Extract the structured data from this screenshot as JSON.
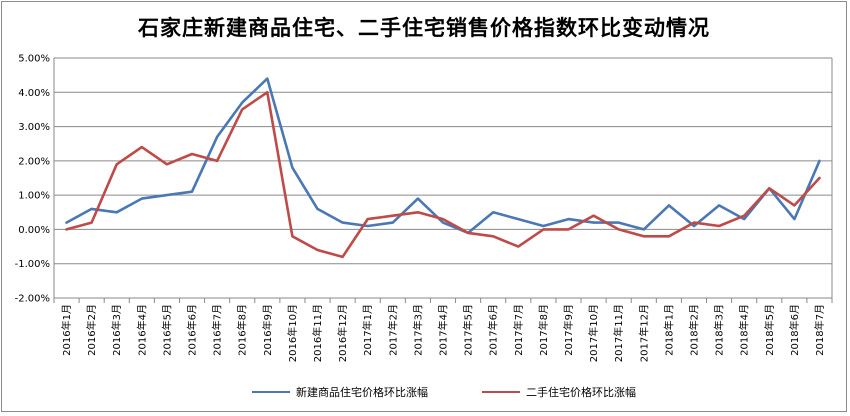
{
  "title": "石家庄新建商品住宅、二手住宅销售价格指数环比变动情况",
  "chart_data": {
    "type": "line",
    "title": "石家庄新建商品住宅、二手住宅销售价格指数环比变动情况",
    "xlabel": "",
    "ylabel": "",
    "ylim": [
      -2,
      5
    ],
    "yticks": [
      "5.00%",
      "4.00%",
      "3.00%",
      "2.00%",
      "1.00%",
      "0.00%",
      "-1.00%",
      "-2.00%"
    ],
    "ytick_values": [
      5,
      4,
      3,
      2,
      1,
      0,
      -1,
      -2
    ],
    "grid": true,
    "legend_position": "bottom",
    "categories": [
      "2016年1月",
      "2016年2月",
      "2016年3月",
      "2016年4月",
      "2016年5月",
      "2016年6月",
      "2016年7月",
      "2016年8月",
      "2016年9月",
      "2016年10月",
      "2016年11月",
      "2016年12月",
      "2017年1月",
      "2017年2月",
      "2017年3月",
      "2017年4月",
      "2017年5月",
      "2017年6月",
      "2017年7月",
      "2017年8月",
      "2017年9月",
      "2017年10月",
      "2017年11月",
      "2017年12月",
      "2018年1月",
      "2018年2月",
      "2018年3月",
      "2018年4月",
      "2018年5月",
      "2018年6月",
      "2018年7月"
    ],
    "series": [
      {
        "name": "新建商品住宅价格环比涨幅",
        "color": "#4a78b4",
        "values": [
          0.2,
          0.6,
          0.5,
          0.9,
          1.0,
          1.1,
          2.7,
          3.7,
          4.4,
          1.8,
          0.6,
          0.2,
          0.1,
          0.2,
          0.9,
          0.2,
          -0.1,
          0.5,
          0.3,
          0.1,
          0.3,
          0.2,
          0.2,
          0.0,
          0.7,
          0.1,
          0.7,
          0.3,
          1.2,
          0.3,
          2.0
        ]
      },
      {
        "name": "二手住宅价格环比涨幅",
        "color": "#be4b48",
        "values": [
          0.0,
          0.2,
          1.9,
          2.4,
          1.9,
          2.2,
          2.0,
          3.5,
          4.0,
          -0.2,
          -0.6,
          -0.8,
          0.3,
          0.4,
          0.5,
          0.3,
          -0.1,
          -0.2,
          -0.5,
          0.0,
          0.0,
          0.4,
          0.0,
          -0.2,
          -0.2,
          0.2,
          0.1,
          0.4,
          1.2,
          0.7,
          1.5
        ]
      }
    ]
  }
}
